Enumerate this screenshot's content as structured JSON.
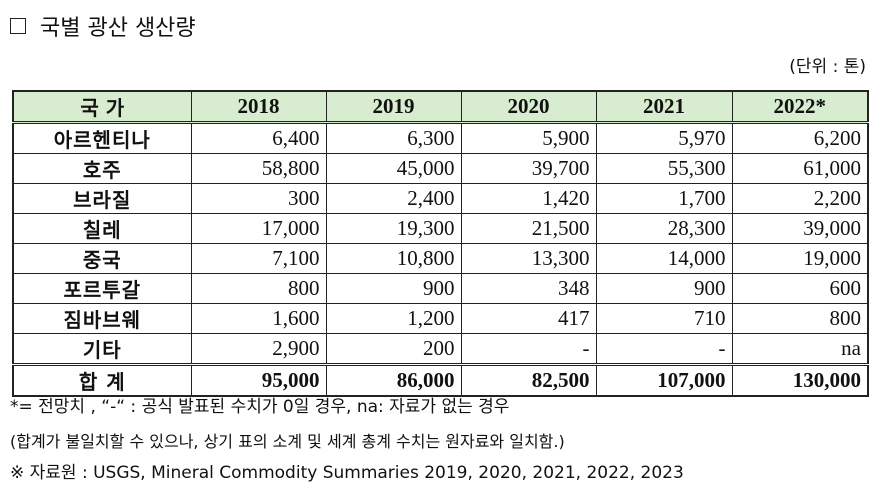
{
  "title": "국별 광산 생산량",
  "unit": "(단위 : 톤)",
  "table": {
    "headers": [
      "국 가",
      "2018",
      "2019",
      "2020",
      "2021",
      "2022*"
    ],
    "rows": [
      {
        "country": "아르헨티나",
        "values": [
          "6,400",
          "6,300",
          "5,900",
          "5,970",
          "6,200"
        ]
      },
      {
        "country": "호주",
        "values": [
          "58,800",
          "45,000",
          "39,700",
          "55,300",
          "61,000"
        ]
      },
      {
        "country": "브라질",
        "values": [
          "300",
          "2,400",
          "1,420",
          "1,700",
          "2,200"
        ]
      },
      {
        "country": "칠레",
        "values": [
          "17,000",
          "19,300",
          "21,500",
          "28,300",
          "39,000"
        ]
      },
      {
        "country": "중국",
        "values": [
          "7,100",
          "10,800",
          "13,300",
          "14,000",
          "19,000"
        ]
      },
      {
        "country": "포르투갈",
        "values": [
          "800",
          "900",
          "348",
          "900",
          "600"
        ]
      },
      {
        "country": "짐바브웨",
        "values": [
          "1,600",
          "1,200",
          "417",
          "710",
          "800"
        ]
      },
      {
        "country": "기타",
        "values": [
          "2,900",
          "200",
          "-",
          "-",
          "na"
        ]
      }
    ],
    "total": {
      "country": "합 계",
      "values": [
        "95,000",
        "86,000",
        "82,500",
        "107,000",
        "130,000"
      ]
    }
  },
  "notes": [
    "*= 전망치 , “-“ : 공식 발표된 수치가 0일 경우, na: 자료가 없는 경우",
    "(합계가 불일치할 수 있으나, 상기 표의 소계 및 세계 총계 수치는 원자료와 일치함.)",
    "※ 자료원 : USGS, Mineral Commodity Summaries 2019, 2020, 2021, 2022, 2023"
  ]
}
